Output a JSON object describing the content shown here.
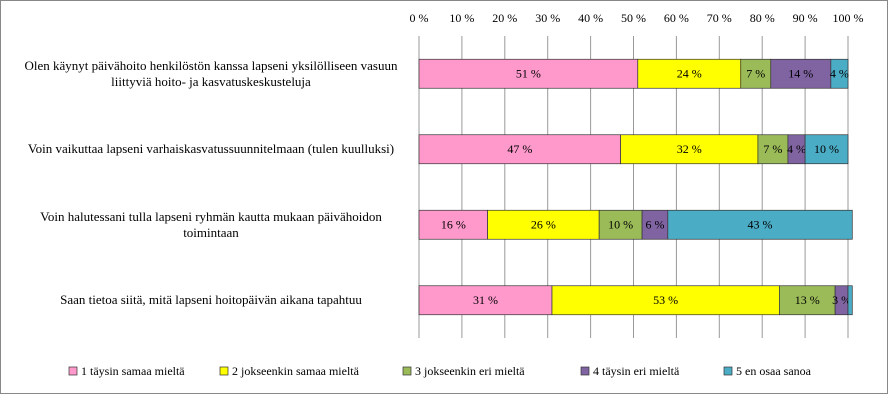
{
  "chart_data": {
    "type": "stacked-bar-horizontal",
    "categories": [
      "Olen käynyt päivähoito henkilöstön kanssa lapseni yksilölliseen vasuun liittyviä hoito- ja kasvatuskeskusteluja",
      "Voin vaikuttaa lapseni varhaiskasvatussuunnitelmaan (tulen kuulluksi)",
      "Voin halutessani tulla lapseni ryhmän kautta mukaan päivähoidon toimintaan",
      "Saan tietoa siitä, mitä lapseni hoitopäivän aikana tapahtuu"
    ],
    "series": [
      {
        "name": "1 täysin samaa mieltä",
        "color": "#ff99cc",
        "values": [
          51,
          47,
          16,
          31
        ],
        "value_labels": [
          "51 %",
          "47 %",
          "16 %",
          "31 %"
        ]
      },
      {
        "name": "2 jokseenkin samaa mieltä",
        "color": "#ffff00",
        "values": [
          24,
          32,
          26,
          53
        ],
        "value_labels": [
          "24 %",
          "32 %",
          "26 %",
          "53 %"
        ]
      },
      {
        "name": "3 jokseenkin eri mieltä",
        "color": "#9bbb59",
        "values": [
          7,
          7,
          10,
          13
        ],
        "value_labels": [
          "7 %",
          "7 %",
          "10 %",
          "13 %"
        ]
      },
      {
        "name": "4 täysin eri mieltä",
        "color": "#8064a2",
        "values": [
          14,
          4,
          6,
          3
        ],
        "value_labels": [
          "14 %",
          "4 %",
          "6 %",
          "3 %"
        ]
      },
      {
        "name": "5 en osaa sanoa",
        "color": "#4bacc6",
        "values": [
          4,
          10,
          43,
          1
        ],
        "value_labels": [
          "4 %",
          "10 %",
          "43 %",
          null
        ]
      }
    ],
    "xlim": [
      0,
      100
    ],
    "xticks": [
      {
        "value": 0,
        "label": "0 %"
      },
      {
        "value": 10,
        "label": "10 %"
      },
      {
        "value": 20,
        "label": "20 %"
      },
      {
        "value": 30,
        "label": "30 %"
      },
      {
        "value": 40,
        "label": "40 %"
      },
      {
        "value": 50,
        "label": "50 %"
      },
      {
        "value": 60,
        "label": "60 %"
      },
      {
        "value": 70,
        "label": "70 %"
      },
      {
        "value": 80,
        "label": "80 %"
      },
      {
        "value": 90,
        "label": "90 %"
      },
      {
        "value": 100,
        "label": "100 %"
      }
    ],
    "grid": true,
    "legend": "bottom"
  }
}
